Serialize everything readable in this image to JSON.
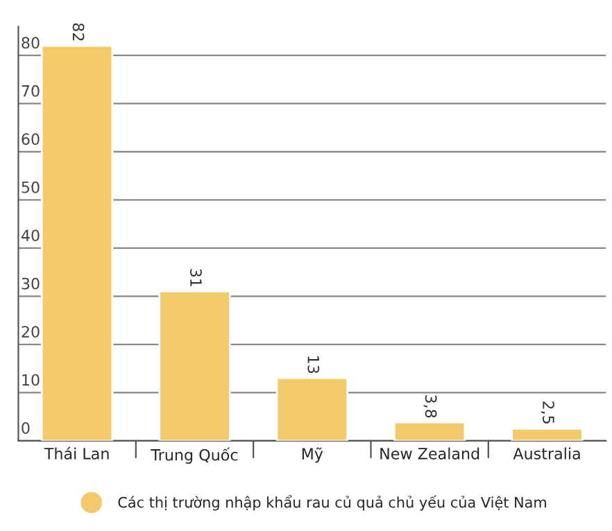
{
  "chart_data": {
    "type": "bar",
    "categories": [
      "Thái Lan",
      "Trung Quốc",
      "Mỹ",
      "New Zealand",
      "Australia"
    ],
    "series": [
      {
        "name": "Các thị trường nhập khẩu rau củ quả chủ yếu của Việt Nam",
        "color": "#f2c96b",
        "values": [
          82,
          31,
          13,
          3.8,
          2.5
        ]
      }
    ],
    "value_labels": [
      "82",
      "31",
      "13",
      "3,8",
      "2,5"
    ],
    "ylim": [
      0,
      86
    ],
    "yticks": [
      0,
      10,
      20,
      30,
      40,
      50,
      60,
      70,
      80
    ],
    "grid": "y",
    "legend": "bottom"
  }
}
